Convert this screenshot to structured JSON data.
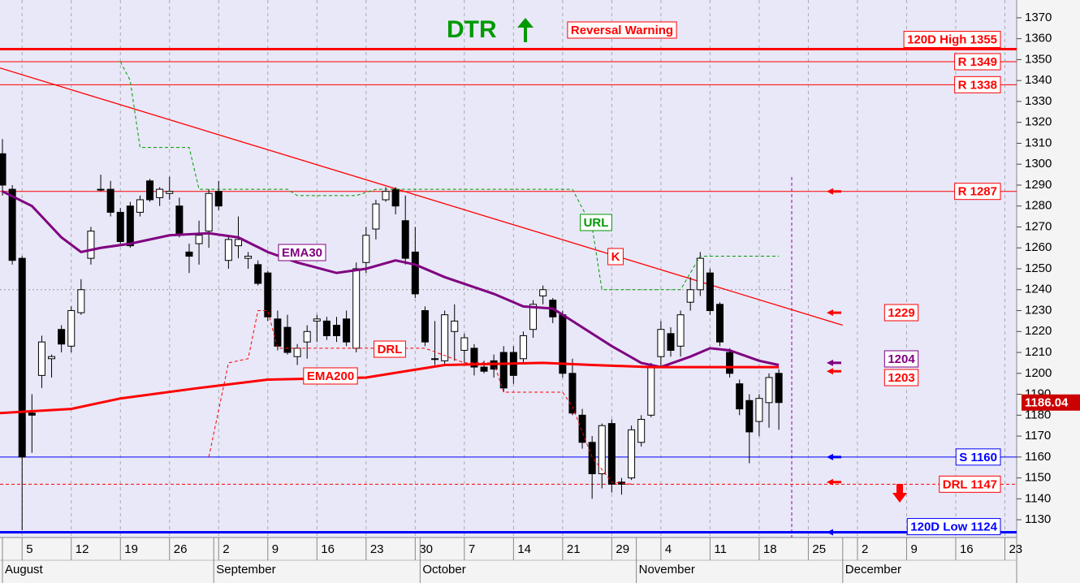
{
  "chart_data": {
    "type": "candlestick",
    "title": "DTR",
    "annotations": [
      "Reversal Warning",
      "K"
    ],
    "xlim": [
      -0.25,
      103.2
    ],
    "ylim": [
      1121.5,
      1378.5
    ],
    "yticks": [
      1130,
      1140,
      1150,
      1160,
      1170,
      1180,
      1190,
      1200,
      1210,
      1220,
      1230,
      1240,
      1250,
      1260,
      1270,
      1280,
      1290,
      1300,
      1310,
      1320,
      1330,
      1340,
      1350,
      1360,
      1370
    ],
    "xticks": [
      {
        "value": 2,
        "label": "5"
      },
      {
        "value": 7,
        "label": "12"
      },
      {
        "value": 12,
        "label": "19"
      },
      {
        "value": 17,
        "label": "26"
      },
      {
        "value": 22,
        "label": "2"
      },
      {
        "value": 27,
        "label": "9"
      },
      {
        "value": 32,
        "label": "16"
      },
      {
        "value": 37,
        "label": "23"
      },
      {
        "value": 42,
        "label": "30"
      },
      {
        "value": 47,
        "label": "7"
      },
      {
        "value": 52,
        "label": "14"
      },
      {
        "value": 57,
        "label": "21"
      },
      {
        "value": 62,
        "label": "29"
      },
      {
        "value": 67,
        "label": "4"
      },
      {
        "value": 72,
        "label": "11"
      },
      {
        "value": 77,
        "label": "18"
      },
      {
        "value": 82,
        "label": "25"
      },
      {
        "value": 87,
        "label": "2"
      },
      {
        "value": 92,
        "label": "9"
      },
      {
        "value": 97,
        "label": "16"
      },
      {
        "value": 102,
        "label": "23"
      }
    ],
    "month_ticks": [
      {
        "value": 0,
        "label": "August"
      },
      {
        "value": 21.5,
        "label": "September"
      },
      {
        "value": 42.5,
        "label": "October"
      },
      {
        "value": 64.5,
        "label": "November"
      },
      {
        "value": 85.5,
        "label": "December"
      }
    ],
    "grid": true,
    "x": [
      0,
      1,
      2,
      3,
      4,
      5,
      6,
      7,
      8,
      9,
      10,
      11,
      12,
      13,
      14,
      15,
      16,
      17,
      18,
      19,
      20,
      21,
      22,
      23,
      24,
      25,
      26,
      27,
      28,
      29,
      30,
      31,
      32,
      33,
      34,
      35,
      36,
      37,
      38,
      39,
      40,
      41,
      42,
      43,
      44,
      45,
      46,
      47,
      48,
      49,
      50,
      51,
      52,
      53,
      54,
      55,
      56,
      57,
      58,
      59,
      60,
      61,
      62,
      63,
      64,
      65,
      66,
      67,
      68,
      69,
      70,
      71,
      72,
      73,
      74,
      75,
      76,
      77,
      78,
      79
    ],
    "open": [
      1305,
      1288,
      1255,
      1181,
      1199,
      1207,
      1221,
      1213,
      1229,
      1255,
      1288,
      1288,
      1277,
      1280,
      1277,
      1292,
      1284,
      1286,
      1280,
      1258,
      1262,
      1268,
      1287,
      1254,
      1261,
      1255,
      1252,
      1248,
      1226,
      1222,
      1208,
      1215,
      1225,
      1225,
      1223,
      1226,
      1212,
      1253,
      1269,
      1283,
      1288,
      1273,
      1258,
      1230,
      1207,
      1206,
      1220,
      1211,
      1212,
      1203,
      1206,
      1210,
      1210,
      1207,
      1221,
      1237,
      1235,
      1228,
      1200,
      1180,
      1167,
      1152,
      1176,
      1148,
      1150,
      1167,
      1180,
      1208,
      1219,
      1213,
      1234,
      1240,
      1248,
      1233,
      1210,
      1195,
      1187,
      1177,
      1186,
      1200
    ],
    "high": [
      1312,
      1290,
      1256,
      1190,
      1218,
      1209,
      1223,
      1232,
      1245,
      1270,
      1295,
      1292,
      1279,
      1282,
      1285,
      1293,
      1289,
      1294,
      1284,
      1262,
      1273,
      1288,
      1292,
      1266,
      1275,
      1258,
      1254,
      1249,
      1230,
      1228,
      1214,
      1223,
      1228,
      1227,
      1227,
      1230,
      1253,
      1270,
      1283,
      1289,
      1289,
      1285,
      1270,
      1232,
      1225,
      1230,
      1233,
      1219,
      1214,
      1206,
      1209,
      1213,
      1213,
      1220,
      1235,
      1242,
      1236,
      1230,
      1207,
      1183,
      1170,
      1176,
      1178,
      1150,
      1175,
      1180,
      1205,
      1225,
      1222,
      1230,
      1246,
      1258,
      1250,
      1234,
      1212,
      1197,
      1190,
      1190,
      1200,
      1202
    ],
    "low": [
      1285,
      1252,
      1125,
      1162,
      1193,
      1198,
      1210,
      1210,
      1228,
      1252,
      1287,
      1275,
      1262,
      1260,
      1275,
      1282,
      1280,
      1283,
      1265,
      1248,
      1252,
      1260,
      1278,
      1250,
      1255,
      1250,
      1242,
      1225,
      1211,
      1209,
      1204,
      1207,
      1215,
      1216,
      1215,
      1213,
      1210,
      1248,
      1264,
      1282,
      1276,
      1252,
      1236,
      1213,
      1204,
      1204,
      1206,
      1205,
      1199,
      1200,
      1198,
      1191,
      1195,
      1205,
      1217,
      1233,
      1224,
      1198,
      1180,
      1164,
      1140,
      1145,
      1143,
      1142,
      1149,
      1165,
      1179,
      1203,
      1208,
      1208,
      1230,
      1237,
      1228,
      1213,
      1198,
      1180,
      1157,
      1170,
      1174,
      1173
    ],
    "close": [
      1290,
      1254,
      1160,
      1180,
      1215,
      1208,
      1214,
      1230,
      1240,
      1268,
      1288,
      1277,
      1263,
      1261,
      1283,
      1283,
      1288,
      1287,
      1266,
      1256,
      1266,
      1286,
      1280,
      1264,
      1264,
      1256,
      1243,
      1227,
      1213,
      1210,
      1212,
      1220,
      1226,
      1218,
      1218,
      1215,
      1250,
      1266,
      1281,
      1287,
      1280,
      1255,
      1238,
      1215,
      1207,
      1228,
      1225,
      1217,
      1203,
      1201,
      1202,
      1193,
      1199,
      1218,
      1233,
      1240,
      1227,
      1200,
      1181,
      1167,
      1152,
      1175,
      1147,
      1147,
      1173,
      1178,
      1203,
      1221,
      1211,
      1228,
      1240,
      1255,
      1230,
      1215,
      1200,
      1183,
      1172,
      1188,
      1198,
      1186.04
    ],
    "last_price": {
      "value": 1186.04,
      "label": "1186.04"
    },
    "overlays": [
      {
        "name": "EMA30",
        "color": "#800080",
        "width": 3,
        "style": "solid",
        "x": [
          0,
          3,
          6,
          8,
          10,
          13,
          17,
          21,
          24,
          27,
          30,
          34,
          37,
          40,
          42,
          45,
          50,
          53,
          56,
          58,
          62,
          65,
          67,
          70,
          72,
          74,
          77,
          79
        ],
        "values": [
          1287,
          1280,
          1265,
          1258,
          1260,
          1262,
          1266,
          1267,
          1265,
          1258,
          1253,
          1248,
          1250,
          1254,
          1252,
          1246,
          1238,
          1232,
          1231,
          1225,
          1213,
          1205,
          1203,
          1208,
          1212,
          1211,
          1206,
          1204
        ]
      },
      {
        "name": "EMA200",
        "color": "#ff0000",
        "width": 3,
        "style": "solid",
        "x": [
          -0.25,
          7,
          12,
          20,
          27,
          37,
          45,
          55,
          60,
          66,
          75,
          79
        ],
        "values": [
          1181,
          1183,
          1188,
          1193,
          1197,
          1198,
          1204,
          1205,
          1204,
          1203,
          1203,
          1203
        ]
      },
      {
        "name": "URL",
        "color": "#009900",
        "width": 1,
        "style": "dashed",
        "x": [
          12,
          13,
          14,
          19,
          20,
          29,
          30,
          36,
          38,
          58,
          60,
          61,
          69,
          71,
          79
        ],
        "values": [
          1349,
          1340,
          1308,
          1308,
          1288,
          1288,
          1285,
          1285,
          1288,
          1288,
          1270,
          1240,
          1240,
          1256,
          1256
        ]
      },
      {
        "name": "DRL",
        "color": "#ff0000",
        "width": 1,
        "style": "dashed",
        "x": [
          21,
          23,
          25,
          26,
          27,
          28,
          43,
          47,
          50,
          51,
          57,
          58,
          60,
          62,
          64
        ],
        "values": [
          1160,
          1205,
          1207,
          1230,
          1230,
          1212,
          1212,
          1205,
          1205,
          1191,
          1191,
          1184,
          1160,
          1148,
          1147
        ]
      }
    ],
    "trendline": {
      "color": "#ff0000",
      "x": [
        -0.25,
        85.5
      ],
      "values": [
        1346,
        1223
      ]
    },
    "levels": [
      {
        "label": "120D High 1355",
        "value": 1355,
        "color": "#ff0000",
        "width": 3,
        "style": "solid"
      },
      {
        "label": "R 1349",
        "value": 1349,
        "color": "#ff0000",
        "width": 1,
        "style": "solid"
      },
      {
        "label": "R 1338",
        "value": 1338,
        "color": "#ff0000",
        "width": 1,
        "style": "solid"
      },
      {
        "label": "R 1287",
        "value": 1287,
        "color": "#ff0000",
        "width": 1,
        "style": "solid"
      },
      {
        "label": "S 1160",
        "value": 1160,
        "color": "#0000ff",
        "width": 1,
        "style": "solid"
      },
      {
        "label": "DRL 1147",
        "value": 1147,
        "color": "#ff0000",
        "width": 1,
        "style": "dashed"
      },
      {
        "label": "120D Low 1124",
        "value": 1124,
        "color": "#0000ff",
        "width": 3,
        "style": "solid"
      },
      {
        "value": 1240,
        "color": "#999999",
        "width": 1,
        "style": "dotted"
      }
    ],
    "markers": [
      {
        "label": "1229",
        "value": 1229,
        "color": "#ff0000"
      },
      {
        "label": "1204",
        "value": 1204,
        "color": "#800080"
      },
      {
        "label": "1203",
        "value": 1203,
        "color": "#ff0000"
      }
    ],
    "arrows": [
      {
        "value": 1287,
        "color": "#ff0000"
      },
      {
        "value": 1229,
        "color": "#ff0000"
      },
      {
        "value": 1205,
        "color": "#800080"
      },
      {
        "value": 1201,
        "color": "#ff0000"
      },
      {
        "value": 1160,
        "color": "#0000ff"
      },
      {
        "value": 1148,
        "color": "#ff0000"
      },
      {
        "value": 1124,
        "color": "#0000ff"
      }
    ]
  }
}
